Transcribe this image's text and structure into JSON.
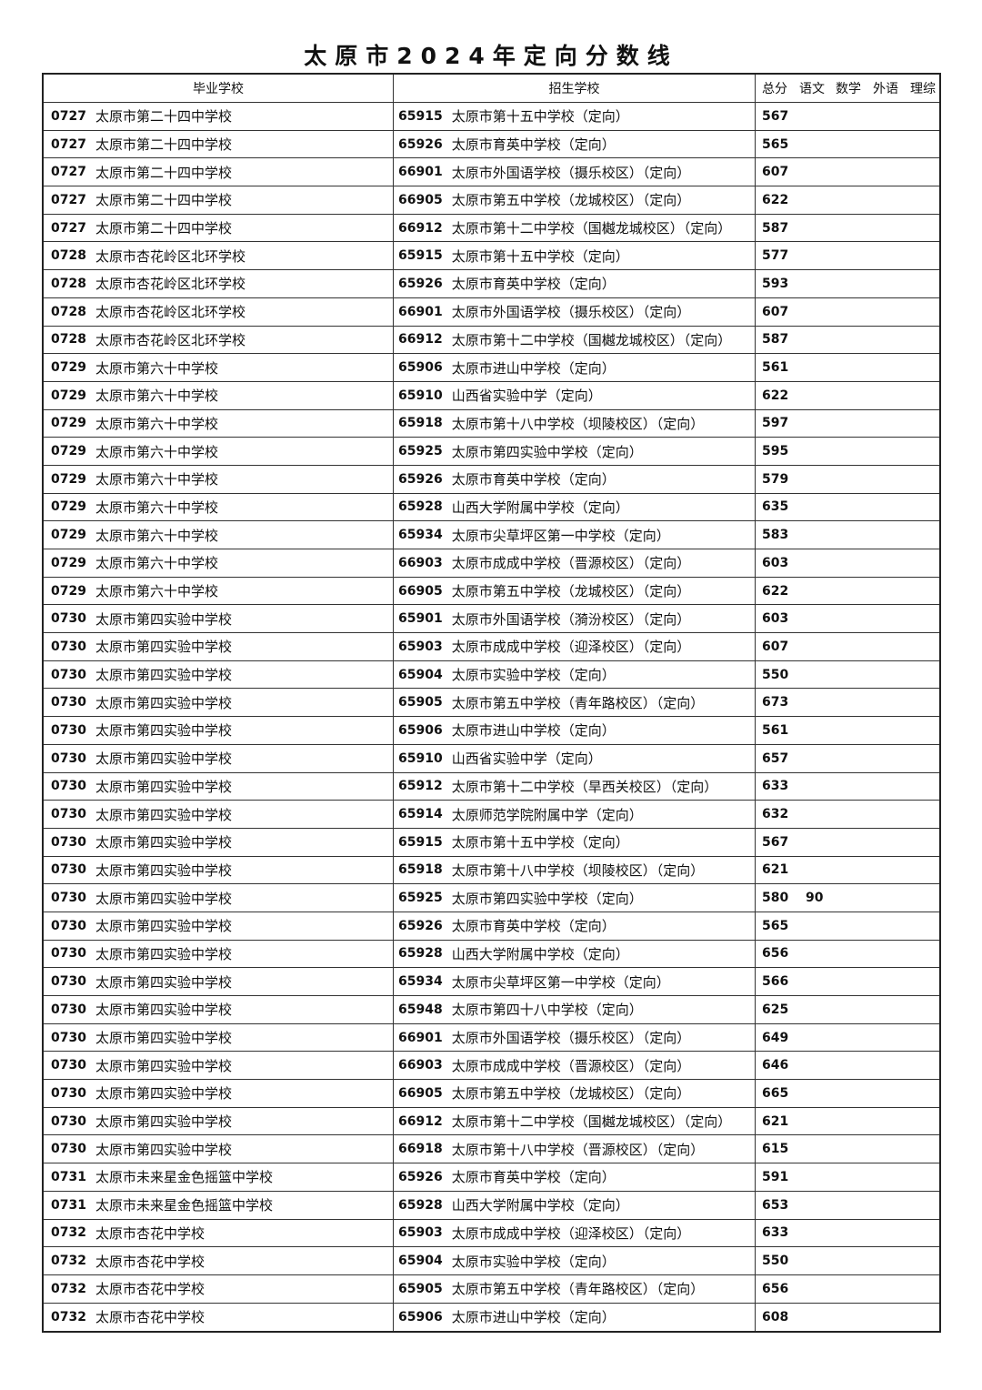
{
  "title": "太原市2024年定向分数线",
  "table": {
    "headers": [
      "毕业学校",
      "招生学校",
      "总分",
      "语文",
      "数学",
      "外语",
      "理综"
    ],
    "rows": [
      {
        "grad_code": "0727",
        "grad_school": "太原市第二十四中学校",
        "enroll_code": "65915",
        "enroll_school": "太原市第十五中学校（定向）",
        "total": "567"
      },
      {
        "grad_code": "0727",
        "grad_school": "太原市第二十四中学校",
        "enroll_code": "65926",
        "enroll_school": "太原市育英中学校（定向）",
        "total": "565"
      },
      {
        "grad_code": "0727",
        "grad_school": "太原市第二十四中学校",
        "enroll_code": "66901",
        "enroll_school": "太原市外国语学校（摄乐校区）（定向）",
        "total": "607"
      },
      {
        "grad_code": "0727",
        "grad_school": "太原市第二十四中学校",
        "enroll_code": "66905",
        "enroll_school": "太原市第五中学校（龙城校区）（定向）",
        "total": "622"
      },
      {
        "grad_code": "0727",
        "grad_school": "太原市第二十四中学校",
        "enroll_code": "66912",
        "enroll_school": "太原市第十二中学校（国樾龙城校区）（定向）",
        "total": "587"
      },
      {
        "grad_code": "0728",
        "grad_school": "太原市杏花岭区北环学校",
        "enroll_code": "65915",
        "enroll_school": "太原市第十五中学校（定向）",
        "total": "577"
      },
      {
        "grad_code": "0728",
        "grad_school": "太原市杏花岭区北环学校",
        "enroll_code": "65926",
        "enroll_school": "太原市育英中学校（定向）",
        "total": "593"
      },
      {
        "grad_code": "0728",
        "grad_school": "太原市杏花岭区北环学校",
        "enroll_code": "66901",
        "enroll_school": "太原市外国语学校（摄乐校区）（定向）",
        "total": "607"
      },
      {
        "grad_code": "0728",
        "grad_school": "太原市杏花岭区北环学校",
        "enroll_code": "66912",
        "enroll_school": "太原市第十二中学校（国樾龙城校区）（定向）",
        "total": "587"
      },
      {
        "grad_code": "0729",
        "grad_school": "太原市第六十中学校",
        "enroll_code": "65906",
        "enroll_school": "太原市进山中学校（定向）",
        "total": "561"
      },
      {
        "grad_code": "0729",
        "grad_school": "太原市第六十中学校",
        "enroll_code": "65910",
        "enroll_school": "山西省实验中学（定向）",
        "total": "622"
      },
      {
        "grad_code": "0729",
        "grad_school": "太原市第六十中学校",
        "enroll_code": "65918",
        "enroll_school": "太原市第十八中学校（坝陵校区）（定向）",
        "total": "597"
      },
      {
        "grad_code": "0729",
        "grad_school": "太原市第六十中学校",
        "enroll_code": "65925",
        "enroll_school": "太原市第四实验中学校（定向）",
        "total": "595"
      },
      {
        "grad_code": "0729",
        "grad_school": "太原市第六十中学校",
        "enroll_code": "65926",
        "enroll_school": "太原市育英中学校（定向）",
        "total": "579"
      },
      {
        "grad_code": "0729",
        "grad_school": "太原市第六十中学校",
        "enroll_code": "65928",
        "enroll_school": "山西大学附属中学校（定向）",
        "total": "635"
      },
      {
        "grad_code": "0729",
        "grad_school": "太原市第六十中学校",
        "enroll_code": "65934",
        "enroll_school": "太原市尖草坪区第一中学校（定向）",
        "total": "583"
      },
      {
        "grad_code": "0729",
        "grad_school": "太原市第六十中学校",
        "enroll_code": "66903",
        "enroll_school": "太原市成成中学校（晋源校区）（定向）",
        "total": "603"
      },
      {
        "grad_code": "0729",
        "grad_school": "太原市第六十中学校",
        "enroll_code": "66905",
        "enroll_school": "太原市第五中学校（龙城校区）（定向）",
        "total": "622"
      },
      {
        "grad_code": "0730",
        "grad_school": "太原市第四实验中学校",
        "enroll_code": "65901",
        "enroll_school": "太原市外国语学校（漪汾校区）（定向）",
        "total": "603"
      },
      {
        "grad_code": "0730",
        "grad_school": "太原市第四实验中学校",
        "enroll_code": "65903",
        "enroll_school": "太原市成成中学校（迎泽校区）（定向）",
        "total": "607"
      },
      {
        "grad_code": "0730",
        "grad_school": "太原市第四实验中学校",
        "enroll_code": "65904",
        "enroll_school": "太原市实验中学校（定向）",
        "total": "550"
      },
      {
        "grad_code": "0730",
        "grad_school": "太原市第四实验中学校",
        "enroll_code": "65905",
        "enroll_school": "太原市第五中学校（青年路校区）（定向）",
        "total": "673"
      },
      {
        "grad_code": "0730",
        "grad_school": "太原市第四实验中学校",
        "enroll_code": "65906",
        "enroll_school": "太原市进山中学校（定向）",
        "total": "561"
      },
      {
        "grad_code": "0730",
        "grad_school": "太原市第四实验中学校",
        "enroll_code": "65910",
        "enroll_school": "山西省实验中学（定向）",
        "total": "657"
      },
      {
        "grad_code": "0730",
        "grad_school": "太原市第四实验中学校",
        "enroll_code": "65912",
        "enroll_school": "太原市第十二中学校（旱西关校区）（定向）",
        "total": "633"
      },
      {
        "grad_code": "0730",
        "grad_school": "太原市第四实验中学校",
        "enroll_code": "65914",
        "enroll_school": "太原师范学院附属中学（定向）",
        "total": "632"
      },
      {
        "grad_code": "0730",
        "grad_school": "太原市第四实验中学校",
        "enroll_code": "65915",
        "enroll_school": "太原市第十五中学校（定向）",
        "total": "567"
      },
      {
        "grad_code": "0730",
        "grad_school": "太原市第四实验中学校",
        "enroll_code": "65918",
        "enroll_school": "太原市第十八中学校（坝陵校区）（定向）",
        "total": "621"
      },
      {
        "grad_code": "0730",
        "grad_school": "太原市第四实验中学校",
        "enroll_code": "65925",
        "enroll_school": "太原市第四实验中学校（定向）",
        "total": "580",
        "chinese": "90"
      },
      {
        "grad_code": "0730",
        "grad_school": "太原市第四实验中学校",
        "enroll_code": "65926",
        "enroll_school": "太原市育英中学校（定向）",
        "total": "565"
      },
      {
        "grad_code": "0730",
        "grad_school": "太原市第四实验中学校",
        "enroll_code": "65928",
        "enroll_school": "山西大学附属中学校（定向）",
        "total": "656"
      },
      {
        "grad_code": "0730",
        "grad_school": "太原市第四实验中学校",
        "enroll_code": "65934",
        "enroll_school": "太原市尖草坪区第一中学校（定向）",
        "total": "566"
      },
      {
        "grad_code": "0730",
        "grad_school": "太原市第四实验中学校",
        "enroll_code": "65948",
        "enroll_school": "太原市第四十八中学校（定向）",
        "total": "625"
      },
      {
        "grad_code": "0730",
        "grad_school": "太原市第四实验中学校",
        "enroll_code": "66901",
        "enroll_school": "太原市外国语学校（摄乐校区）（定向）",
        "total": "649"
      },
      {
        "grad_code": "0730",
        "grad_school": "太原市第四实验中学校",
        "enroll_code": "66903",
        "enroll_school": "太原市成成中学校（晋源校区）（定向）",
        "total": "646"
      },
      {
        "grad_code": "0730",
        "grad_school": "太原市第四实验中学校",
        "enroll_code": "66905",
        "enroll_school": "太原市第五中学校（龙城校区）（定向）",
        "total": "665"
      },
      {
        "grad_code": "0730",
        "grad_school": "太原市第四实验中学校",
        "enroll_code": "66912",
        "enroll_school": "太原市第十二中学校（国樾龙城校区）（定向）",
        "total": "621"
      },
      {
        "grad_code": "0730",
        "grad_school": "太原市第四实验中学校",
        "enroll_code": "66918",
        "enroll_school": "太原市第十八中学校（晋源校区）（定向）",
        "total": "615"
      },
      {
        "grad_code": "0731",
        "grad_school": "太原市未来星金色摇篮中学校",
        "enroll_code": "65926",
        "enroll_school": "太原市育英中学校（定向）",
        "total": "591"
      },
      {
        "grad_code": "0731",
        "grad_school": "太原市未来星金色摇篮中学校",
        "enroll_code": "65928",
        "enroll_school": "山西大学附属中学校（定向）",
        "total": "653"
      },
      {
        "grad_code": "0732",
        "grad_school": "太原市杏花中学校",
        "enroll_code": "65903",
        "enroll_school": "太原市成成中学校（迎泽校区）（定向）",
        "total": "633"
      },
      {
        "grad_code": "0732",
        "grad_school": "太原市杏花中学校",
        "enroll_code": "65904",
        "enroll_school": "太原市实验中学校（定向）",
        "total": "550"
      },
      {
        "grad_code": "0732",
        "grad_school": "太原市杏花中学校",
        "enroll_code": "65905",
        "enroll_school": "太原市第五中学校（青年路校区）（定向）",
        "total": "656"
      },
      {
        "grad_code": "0732",
        "grad_school": "太原市杏花中学校",
        "enroll_code": "65906",
        "enroll_school": "太原市进山中学校（定向）",
        "total": "608"
      }
    ]
  }
}
